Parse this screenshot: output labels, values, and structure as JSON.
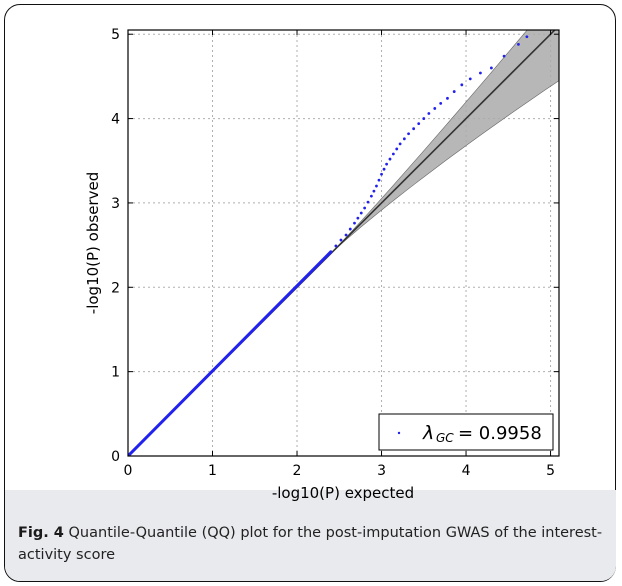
{
  "chart_data": {
    "type": "scatter",
    "xlabel": "-log10(P) expected",
    "ylabel": "-log10(P) observed",
    "xlim": [
      0,
      5.1
    ],
    "ylim": [
      0,
      5.05
    ],
    "x_ticks": [
      "0",
      "1",
      "2",
      "3",
      "4",
      "5"
    ],
    "y_ticks": [
      "0",
      "1",
      "2",
      "3",
      "4",
      "5"
    ],
    "grid": true,
    "legend_position": "bottom-right",
    "legend": {
      "symbol": "λ",
      "subscript": "GC",
      "value": "= 0.9958"
    },
    "point_color": "#2222ee",
    "reference_line": {
      "from": [
        0,
        0
      ],
      "to": [
        5.1,
        5.1
      ],
      "color": "#333333"
    },
    "confidence_band": {
      "color": "#aaaaaa",
      "upper_at_x_max": 5.5,
      "lower_at_x_max": 4.45,
      "diverges_from_x": 2.4
    },
    "points": [
      [
        2.4,
        2.42
      ],
      [
        2.46,
        2.49
      ],
      [
        2.52,
        2.56
      ],
      [
        2.58,
        2.62
      ],
      [
        2.63,
        2.69
      ],
      [
        2.68,
        2.76
      ],
      [
        2.72,
        2.82
      ],
      [
        2.76,
        2.88
      ],
      [
        2.8,
        2.94
      ],
      [
        2.84,
        3.01
      ],
      [
        2.88,
        3.08
      ],
      [
        2.91,
        3.14
      ],
      [
        2.94,
        3.2
      ],
      [
        2.97,
        3.27
      ],
      [
        3.0,
        3.34
      ],
      [
        3.03,
        3.4
      ],
      [
        3.06,
        3.46
      ],
      [
        3.1,
        3.52
      ],
      [
        3.14,
        3.58
      ],
      [
        3.18,
        3.64
      ],
      [
        3.22,
        3.7
      ],
      [
        3.27,
        3.76
      ],
      [
        3.32,
        3.82
      ],
      [
        3.38,
        3.88
      ],
      [
        3.44,
        3.94
      ],
      [
        3.5,
        4.0
      ],
      [
        3.56,
        4.06
      ],
      [
        3.63,
        4.12
      ],
      [
        3.7,
        4.18
      ],
      [
        3.78,
        4.24
      ],
      [
        3.86,
        4.32
      ],
      [
        3.95,
        4.4
      ],
      [
        4.05,
        4.47
      ],
      [
        4.17,
        4.54
      ],
      [
        4.3,
        4.6
      ],
      [
        4.45,
        4.74
      ],
      [
        4.62,
        4.88
      ],
      [
        4.72,
        4.97
      ]
    ]
  },
  "caption": {
    "label": "Fig. 4",
    "text": " Quantile-Quantile (QQ) plot for the post-imputation GWAS of the interest-activity score"
  }
}
